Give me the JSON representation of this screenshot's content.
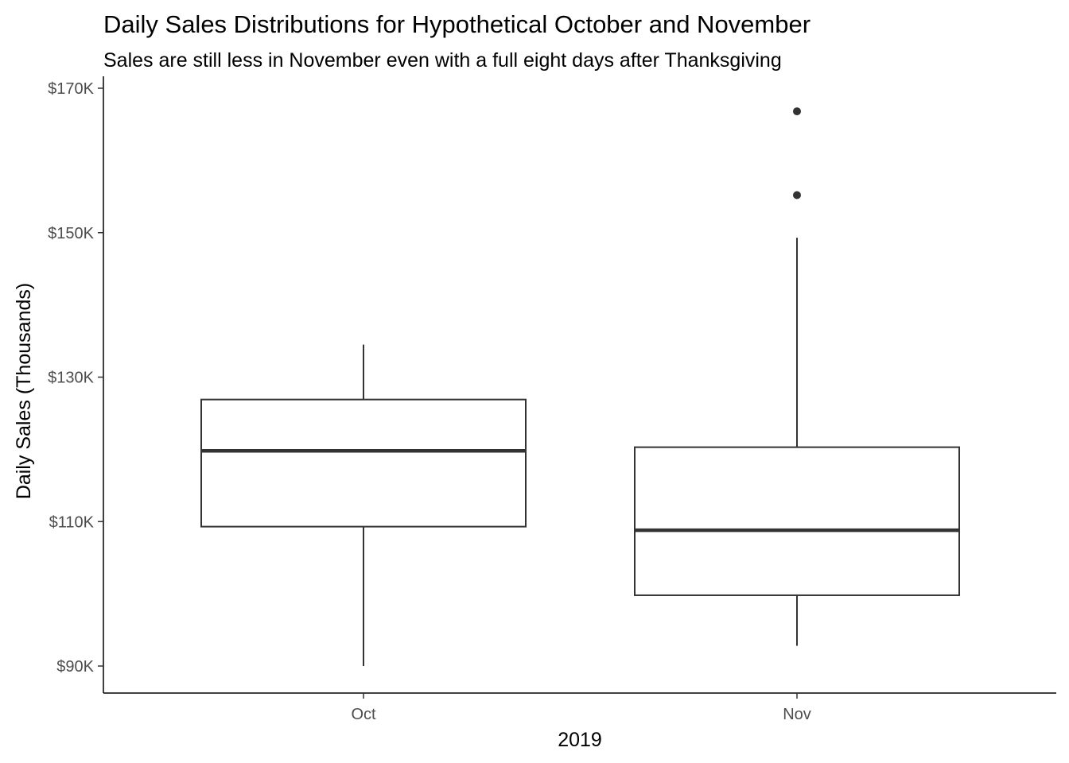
{
  "chart_data": {
    "type": "boxplot",
    "title": "Daily Sales Distributions for Hypothetical October and November",
    "subtitle": "Sales are still less in November even with a full eight days after Thanksgiving",
    "xlabel": "2019",
    "ylabel": "Daily Sales (Thousands)",
    "ylim": [
      86300,
      170000
    ],
    "y_ticks": [
      90000,
      110000,
      130000,
      150000,
      170000
    ],
    "y_tick_labels": [
      "$90K",
      "$110K",
      "$130K",
      "$150K",
      "$170K"
    ],
    "grid": false,
    "categories": [
      "Oct",
      "Nov"
    ],
    "boxes": [
      {
        "category": "Oct",
        "whisker_low": 90000,
        "q1": 109300,
        "median": 119800,
        "q3": 126900,
        "whisker_high": 134500,
        "outliers": []
      },
      {
        "category": "Nov",
        "whisker_low": 92800,
        "q1": 99800,
        "median": 108800,
        "q3": 120300,
        "whisker_high": 149300,
        "outliers": [
          155200,
          166800
        ]
      }
    ]
  }
}
